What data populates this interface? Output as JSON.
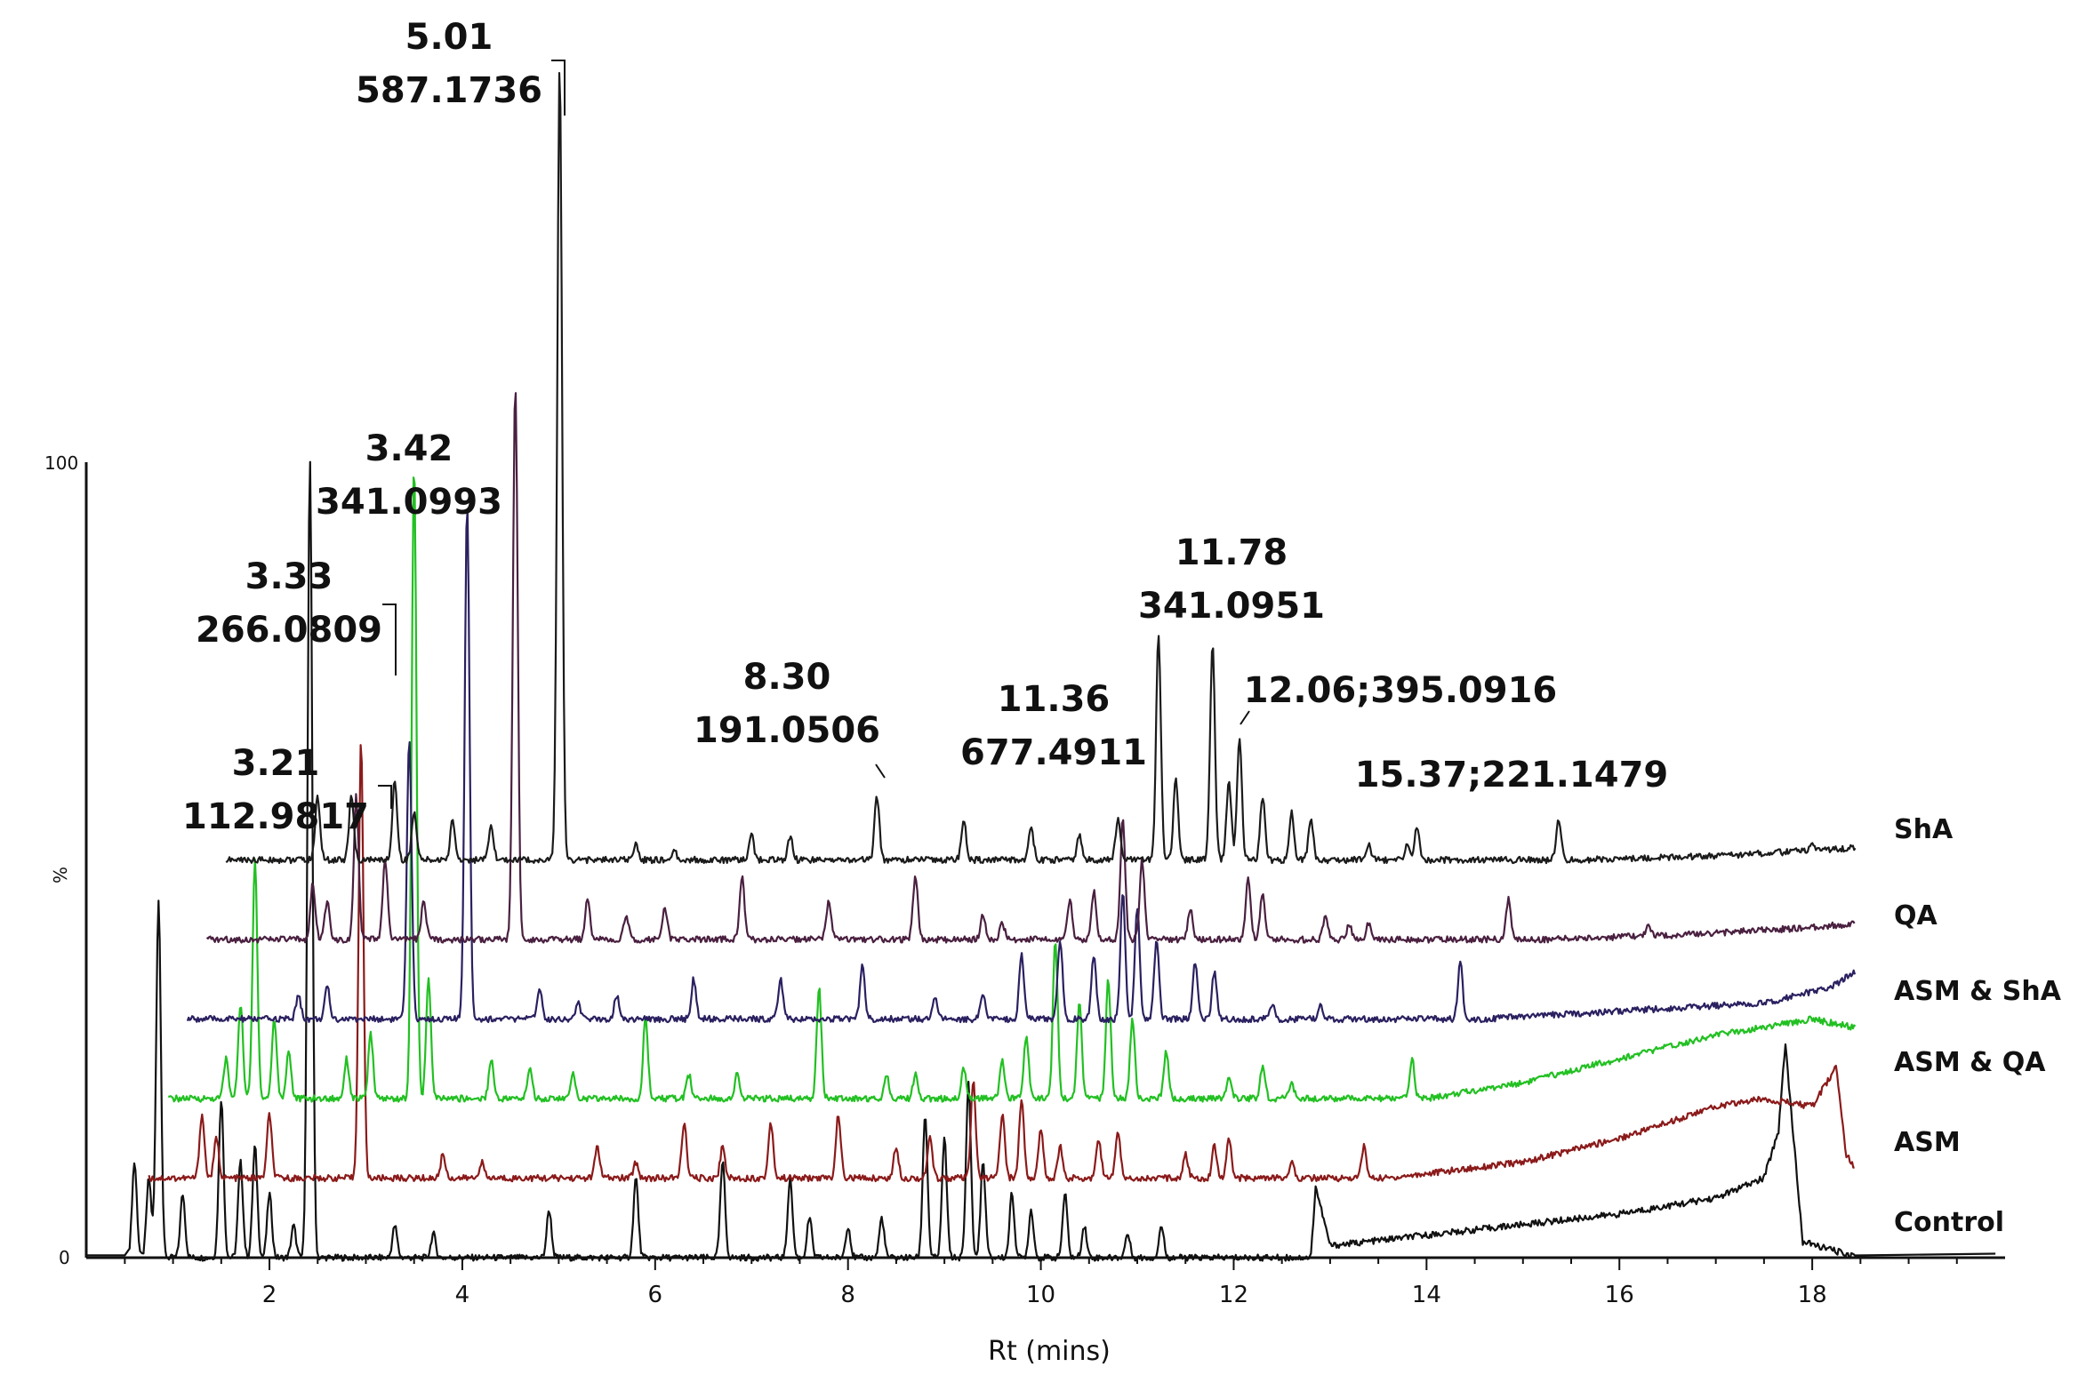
{
  "chart_data": {
    "type": "line",
    "xlabel": "Rt (mins)",
    "ylabel": "%",
    "x_ticks": [
      2,
      4,
      6,
      8,
      10,
      12,
      14,
      16,
      18
    ],
    "y_ticks": [
      0,
      100
    ],
    "xlim": [
      0.1,
      20.0
    ],
    "ylim": [
      0,
      100
    ],
    "series": [
      {
        "name": "Control",
        "color": "#111111",
        "offset": 0,
        "end_level": 0,
        "peaks": [
          [
            0.6,
            12
          ],
          [
            0.75,
            10
          ],
          [
            0.85,
            45
          ],
          [
            1.1,
            8
          ],
          [
            1.5,
            20
          ],
          [
            1.7,
            12
          ],
          [
            1.85,
            14
          ],
          [
            2.0,
            8
          ],
          [
            2.25,
            4
          ],
          [
            2.42,
            100
          ],
          [
            3.3,
            4
          ],
          [
            3.7,
            3
          ],
          [
            4.9,
            6
          ],
          [
            5.8,
            10
          ],
          [
            6.7,
            12
          ],
          [
            7.4,
            10
          ],
          [
            7.6,
            5
          ],
          [
            8.0,
            4
          ],
          [
            8.35,
            5
          ],
          [
            8.8,
            18
          ],
          [
            9.0,
            15
          ],
          [
            9.25,
            22
          ],
          [
            9.4,
            12
          ],
          [
            9.7,
            8
          ],
          [
            9.9,
            6
          ],
          [
            10.25,
            8
          ],
          [
            10.45,
            4
          ],
          [
            10.9,
            3
          ],
          [
            11.25,
            4
          ]
        ],
        "ramp": [
          [
            12.8,
            0
          ],
          [
            12.85,
            9
          ],
          [
            13.0,
            1.5
          ],
          [
            14.5,
            3.5
          ],
          [
            16.0,
            5.5
          ],
          [
            17.0,
            7.5
          ],
          [
            17.5,
            10
          ],
          [
            17.65,
            16
          ],
          [
            17.72,
            27
          ],
          [
            17.9,
            2
          ],
          [
            18.4,
            0.3
          ]
        ]
      },
      {
        "name": "ASM",
        "color": "#8b1a1a",
        "offset": 10,
        "end_level": 0,
        "peaks": [
          [
            1.3,
            8
          ],
          [
            1.45,
            5
          ],
          [
            2.0,
            8
          ],
          [
            2.95,
            55
          ],
          [
            3.8,
            3
          ],
          [
            4.2,
            2
          ],
          [
            5.4,
            4
          ],
          [
            5.8,
            2
          ],
          [
            6.3,
            7
          ],
          [
            6.7,
            4
          ],
          [
            7.2,
            7
          ],
          [
            7.9,
            8
          ],
          [
            8.5,
            4
          ],
          [
            8.85,
            5
          ],
          [
            9.3,
            12
          ],
          [
            9.6,
            8
          ],
          [
            9.8,
            10
          ],
          [
            10.0,
            6
          ],
          [
            10.2,
            4
          ],
          [
            10.6,
            5
          ],
          [
            10.8,
            6
          ],
          [
            11.5,
            3
          ],
          [
            11.8,
            4
          ],
          [
            11.95,
            5
          ],
          [
            12.6,
            2
          ],
          [
            13.35,
            4
          ]
        ],
        "ramp": [
          [
            13.6,
            0
          ],
          [
            15.0,
            2
          ],
          [
            16.0,
            5
          ],
          [
            17.0,
            9
          ],
          [
            17.5,
            10
          ],
          [
            18.0,
            9
          ],
          [
            18.25,
            14
          ],
          [
            18.35,
            3
          ],
          [
            18.45,
            1
          ]
        ]
      },
      {
        "name": "ASM & QA",
        "color": "#22c022",
        "offset": 20,
        "end_level": 0,
        "peaks": [
          [
            1.55,
            5
          ],
          [
            1.7,
            12
          ],
          [
            1.85,
            30
          ],
          [
            2.05,
            10
          ],
          [
            2.2,
            6
          ],
          [
            2.8,
            5
          ],
          [
            3.05,
            8
          ],
          [
            3.5,
            80
          ],
          [
            3.65,
            15
          ],
          [
            4.3,
            5
          ],
          [
            4.7,
            4
          ],
          [
            5.15,
            3
          ],
          [
            5.9,
            10
          ],
          [
            6.35,
            3
          ],
          [
            6.85,
            3
          ],
          [
            7.7,
            14
          ],
          [
            8.4,
            3
          ],
          [
            8.7,
            3
          ],
          [
            9.2,
            4
          ],
          [
            9.6,
            5
          ],
          [
            9.85,
            8
          ],
          [
            10.15,
            20
          ],
          [
            10.4,
            12
          ],
          [
            10.7,
            15
          ],
          [
            10.95,
            10
          ],
          [
            11.3,
            6
          ],
          [
            11.95,
            3
          ],
          [
            12.3,
            4
          ],
          [
            12.6,
            2
          ],
          [
            13.85,
            5
          ]
        ],
        "ramp": [
          [
            14.0,
            0
          ],
          [
            15.0,
            2
          ],
          [
            16.0,
            5
          ],
          [
            17.0,
            8
          ],
          [
            18.0,
            10
          ],
          [
            18.4,
            9
          ]
        ]
      },
      {
        "name": "ASM & ShA",
        "color": "#2b2060",
        "offset": 30,
        "end_level": 0,
        "peaks": [
          [
            2.3,
            3
          ],
          [
            2.6,
            4
          ],
          [
            3.45,
            35
          ],
          [
            4.05,
            65
          ],
          [
            4.8,
            4
          ],
          [
            5.2,
            2
          ],
          [
            5.6,
            3
          ],
          [
            6.4,
            5
          ],
          [
            7.3,
            5
          ],
          [
            8.15,
            7
          ],
          [
            8.9,
            3
          ],
          [
            9.4,
            3
          ],
          [
            9.8,
            8
          ],
          [
            10.2,
            10
          ],
          [
            10.55,
            8
          ],
          [
            10.85,
            16
          ],
          [
            11.0,
            14
          ],
          [
            11.2,
            10
          ],
          [
            11.6,
            7
          ],
          [
            11.8,
            6
          ],
          [
            12.4,
            2
          ],
          [
            12.9,
            2
          ],
          [
            14.35,
            7
          ]
        ],
        "ramp": [
          [
            14.6,
            0
          ],
          [
            16.0,
            1
          ],
          [
            17.5,
            2
          ],
          [
            18.2,
            4
          ],
          [
            18.45,
            6
          ]
        ]
      },
      {
        "name": "QA",
        "color": "#4a2040",
        "offset": 40,
        "end_level": 0,
        "peaks": [
          [
            2.45,
            7
          ],
          [
            2.6,
            5
          ],
          [
            2.9,
            18
          ],
          [
            3.2,
            10
          ],
          [
            3.6,
            5
          ],
          [
            4.55,
            70
          ],
          [
            5.3,
            5
          ],
          [
            5.7,
            3
          ],
          [
            6.1,
            4
          ],
          [
            6.9,
            8
          ],
          [
            7.8,
            5
          ],
          [
            8.7,
            8
          ],
          [
            9.4,
            3
          ],
          [
            9.6,
            2
          ],
          [
            10.3,
            5
          ],
          [
            10.55,
            6
          ],
          [
            10.85,
            15
          ],
          [
            11.05,
            10
          ],
          [
            11.55,
            4
          ],
          [
            12.15,
            8
          ],
          [
            12.3,
            6
          ],
          [
            12.95,
            3
          ],
          [
            13.2,
            2
          ],
          [
            13.4,
            2
          ],
          [
            14.85,
            5
          ],
          [
            16.3,
            1.5
          ]
        ],
        "ramp": [
          [
            15.2,
            0
          ],
          [
            16.5,
            0.5
          ],
          [
            18.0,
            1.5
          ],
          [
            18.45,
            2
          ]
        ]
      },
      {
        "name": "ShA",
        "color": "#1b1b1b",
        "offset": 50,
        "end_level": 0,
        "peaks": [
          [
            2.5,
            8
          ],
          [
            2.85,
            8
          ],
          [
            3.3,
            10
          ],
          [
            3.5,
            6
          ],
          [
            3.9,
            5
          ],
          [
            4.3,
            4
          ],
          [
            5.01,
            100
          ],
          [
            5.8,
            2
          ],
          [
            6.2,
            1
          ],
          [
            7.0,
            3
          ],
          [
            7.4,
            3
          ],
          [
            8.3,
            8
          ],
          [
            9.2,
            5
          ],
          [
            9.9,
            4
          ],
          [
            10.4,
            3
          ],
          [
            10.8,
            5
          ],
          [
            11.22,
            28
          ],
          [
            11.4,
            10
          ],
          [
            11.78,
            27
          ],
          [
            11.95,
            10
          ],
          [
            12.06,
            15
          ],
          [
            12.3,
            8
          ],
          [
            12.6,
            6
          ],
          [
            12.8,
            5
          ],
          [
            13.4,
            2
          ],
          [
            13.8,
            2
          ],
          [
            13.9,
            4
          ],
          [
            15.37,
            5
          ],
          [
            18.0,
            1
          ]
        ],
        "ramp": [
          [
            15.6,
            0
          ],
          [
            17.0,
            0.5
          ],
          [
            18.45,
            1.5
          ]
        ]
      }
    ],
    "annotations": [
      {
        "rt": "5.01",
        "mz": "587.1736",
        "line1": "5.01",
        "line2": "587.1736"
      },
      {
        "rt": "3.42",
        "mz": "341.0993",
        "line1": "3.42",
        "line2": "341.0993"
      },
      {
        "rt": "3.33",
        "mz": "266.0809",
        "line1": "3.33",
        "line2": "266.0809"
      },
      {
        "rt": "3.21",
        "mz": "112.9817",
        "line1": "3.21",
        "line2": "112.9817"
      },
      {
        "rt": "8.30",
        "mz": "191.0506",
        "line1": "8.30",
        "line2": "191.0506"
      },
      {
        "rt": "11.36",
        "mz": "677.4911",
        "line1": "11.36",
        "line2": "677.4911"
      },
      {
        "rt": "11.78",
        "mz": "341.0951",
        "line1": "11.78",
        "line2": "341.0951"
      },
      {
        "rt": "12.06",
        "mz": "395.0916",
        "line1": "12.06;395.0916",
        "line2": ""
      },
      {
        "rt": "15.37",
        "mz": "221.1479",
        "line1": "15.37;221.1479",
        "line2": ""
      }
    ],
    "legend_placement": "right, beside each trace",
    "grid": false
  }
}
